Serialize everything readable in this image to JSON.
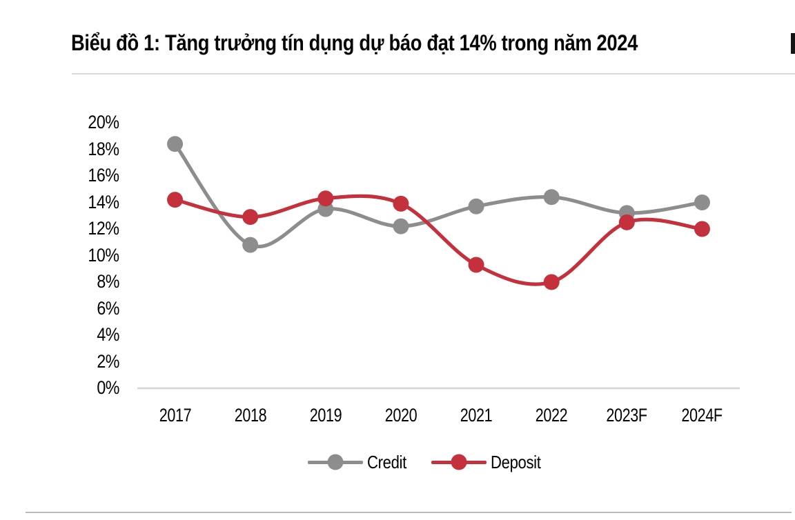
{
  "report": {
    "title": "Biểu đồ 1: Tăng trưởng tín dụng dự báo đạt 14% trong năm 2024"
  },
  "chart_data": {
    "type": "line",
    "title": "Biểu đồ 1: Tăng trưởng tín dụng dự báo đạt 14% trong năm 2024",
    "categories": [
      "2017",
      "2018",
      "2019",
      "2020",
      "2021",
      "2022",
      "2023F",
      "2024F"
    ],
    "series": [
      {
        "name": "Credit",
        "color": "#8d8d8d",
        "values": [
          18.4,
          10.8,
          13.5,
          12.2,
          13.7,
          14.4,
          13.2,
          14.0
        ]
      },
      {
        "name": "Deposit",
        "color": "#c4313d",
        "values": [
          14.2,
          12.9,
          14.3,
          13.9,
          9.3,
          8.0,
          12.5,
          12.0
        ]
      }
    ],
    "xlabel": "",
    "ylabel": "",
    "ylim": [
      0,
      20
    ],
    "ytick_step": 2,
    "ytick_labels": [
      "0%",
      "2%",
      "4%",
      "6%",
      "8%",
      "10%",
      "12%",
      "14%",
      "16%",
      "18%",
      "20%"
    ],
    "grid": false,
    "line_style": "smooth",
    "markers": "circle",
    "legend_position": "bottom",
    "legend": [
      "Credit",
      "Deposit"
    ]
  },
  "colors": {
    "axis_line": "#d6d6d6",
    "top_rule": "#d9d9d9",
    "bottom_rule": "#bbbbbb",
    "credit": "#8d8d8d",
    "deposit": "#c4313d"
  }
}
